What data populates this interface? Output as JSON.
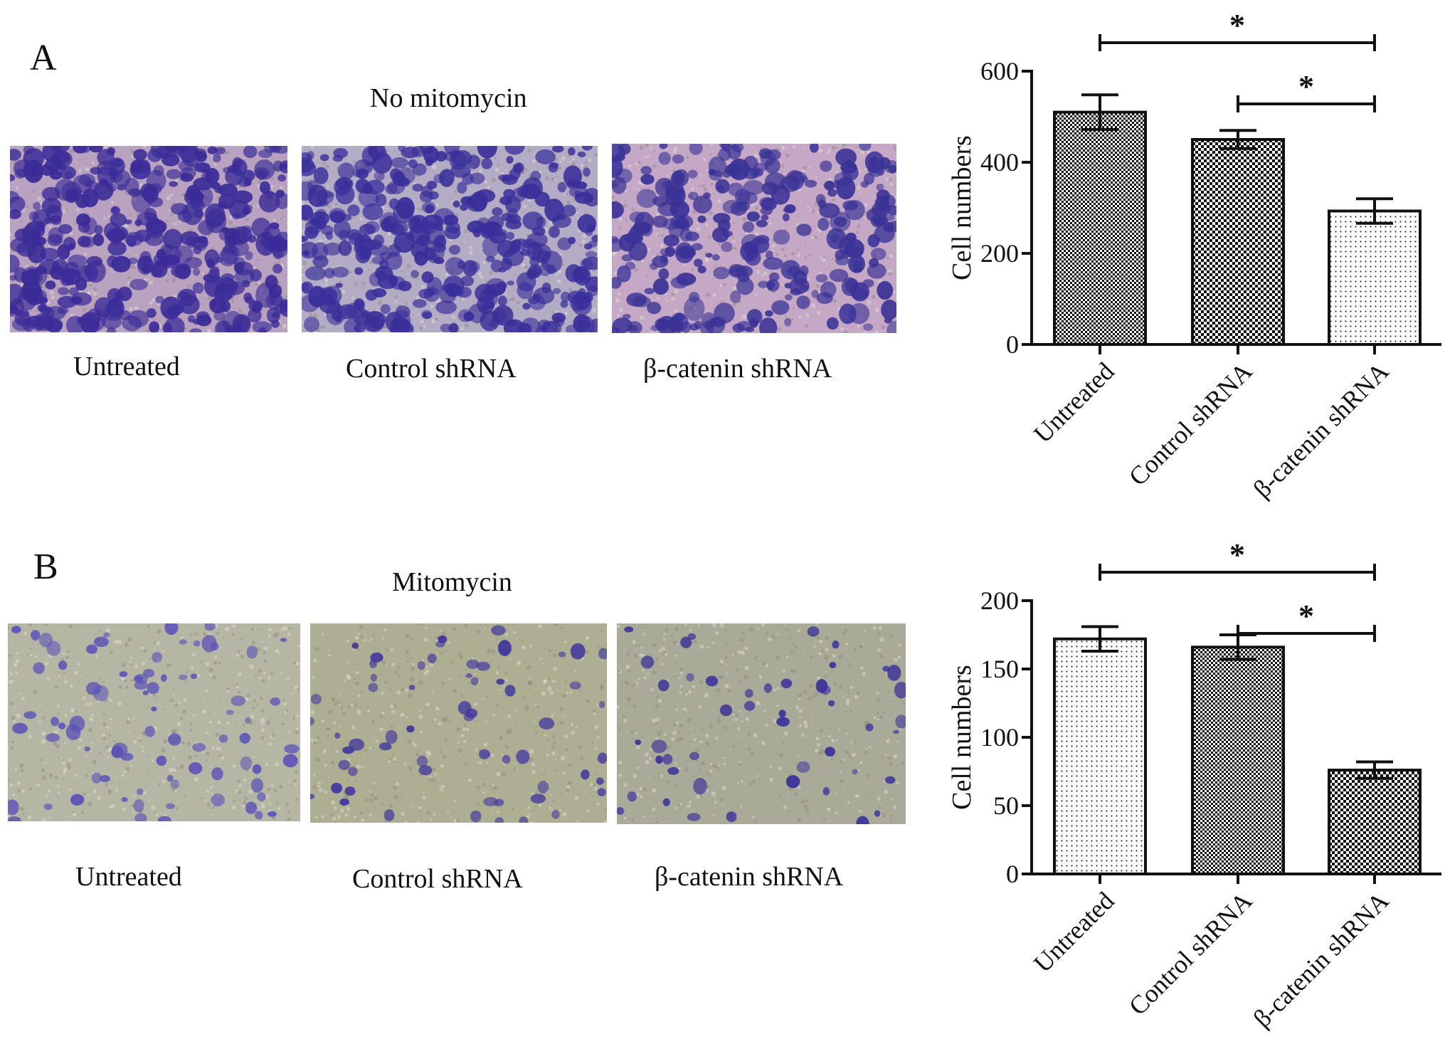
{
  "panels": [
    {
      "letter": "A",
      "title": "No mitomycin",
      "images": [
        {
          "label": "Untreated",
          "stain_density": 0.6,
          "bg": "#b9a2bf",
          "cell": "#3b2c98"
        },
        {
          "label": "Control shRNA",
          "stain_density": 0.58,
          "bg": "#b4acc4",
          "cell": "#3a2f9a"
        },
        {
          "label": "β-catenin shRNA",
          "stain_density": 0.42,
          "bg": "#c4a8c6",
          "cell": "#3a3296"
        }
      ]
    },
    {
      "letter": "B",
      "title": "Mitomycin",
      "images": [
        {
          "label": "Untreated",
          "stain_density": 0.12,
          "bg": "#b5b6a4",
          "cell": "#5b52b8"
        },
        {
          "label": "Control shRNA",
          "stain_density": 0.09,
          "bg": "#aeae92",
          "cell": "#3f359f"
        },
        {
          "label": "β-catenin shRNA",
          "stain_density": 0.07,
          "bg": "#a9ab98",
          "cell": "#3b3399"
        }
      ]
    }
  ],
  "chart_data": [
    {
      "type": "bar",
      "categories": [
        "Untreated",
        "Control shRNA",
        "β-catenin shRNA"
      ],
      "values": [
        510,
        450,
        293
      ],
      "errors": [
        38,
        20,
        27
      ],
      "patterns": [
        "dense-check",
        "check",
        "dots"
      ],
      "ylabel": "Cell numbers",
      "ylim": [
        0,
        600
      ],
      "yticks": [
        0,
        200,
        400,
        600
      ],
      "significance": [
        {
          "from": 0,
          "to": 2,
          "label": "*"
        },
        {
          "from": 1,
          "to": 2,
          "label": "*"
        }
      ]
    },
    {
      "type": "bar",
      "categories": [
        "Untreated",
        "Control shRNA",
        "β-catenin shRNA"
      ],
      "values": [
        172,
        166,
        76
      ],
      "errors": [
        9,
        9,
        6
      ],
      "patterns": [
        "dots",
        "dense-check",
        "check"
      ],
      "ylabel": "Cell numbers",
      "ylim": [
        0,
        200
      ],
      "yticks": [
        0,
        50,
        100,
        150,
        200
      ],
      "significance": [
        {
          "from": 0,
          "to": 2,
          "label": "*"
        },
        {
          "from": 1,
          "to": 2,
          "label": "*"
        }
      ]
    }
  ]
}
